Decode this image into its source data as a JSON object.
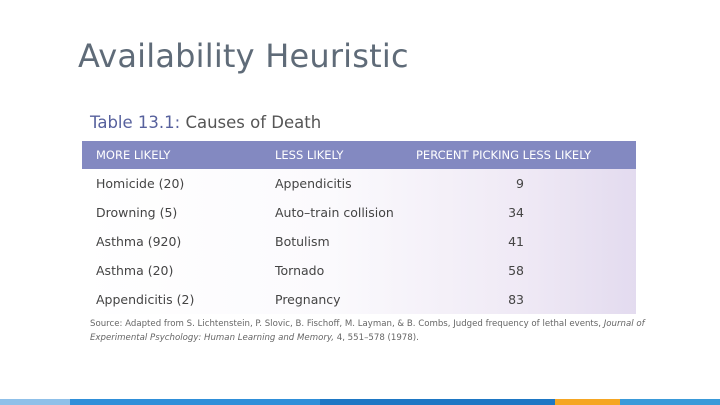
{
  "slide": {
    "title": "Availability Heuristic"
  },
  "table": {
    "caption_number": "Table 13.1:",
    "caption_title": "Causes of Death",
    "headers": [
      "MORE LIKELY",
      "LESS LIKELY",
      "PERCENT PICKING LESS LIKELY"
    ],
    "rows": [
      {
        "more": "Homicide (20)",
        "less": "Appendicitis",
        "percent": "9"
      },
      {
        "more": "Drowning (5)",
        "less": "Auto–train collision",
        "percent": "34"
      },
      {
        "more": "Asthma (920)",
        "less": "Botulism",
        "percent": "41"
      },
      {
        "more": "Asthma (20)",
        "less": "Tornado",
        "percent": "58"
      },
      {
        "more": "Appendicitis (2)",
        "less": "Pregnancy",
        "percent": "83"
      }
    ],
    "source_prefix": "Source: Adapted from S. Lichtenstein, P. Slovic, B. Fischoff, M. Layman, & B. Combs, Judged frequency of lethal events,",
    "source_journal": "Journal of Experimental Psychology: Human Learning and Memory,",
    "source_suffix": "4, 551–578 (1978)."
  },
  "colors": {
    "header_bg": "#8389c1",
    "title_text": "#5f6b78",
    "caption_accent": "#57619d",
    "bottom_bar": [
      "#8fc0e9",
      "#2f8fd9",
      "#1e77c4",
      "#f5a623",
      "#3a9ad9"
    ]
  }
}
